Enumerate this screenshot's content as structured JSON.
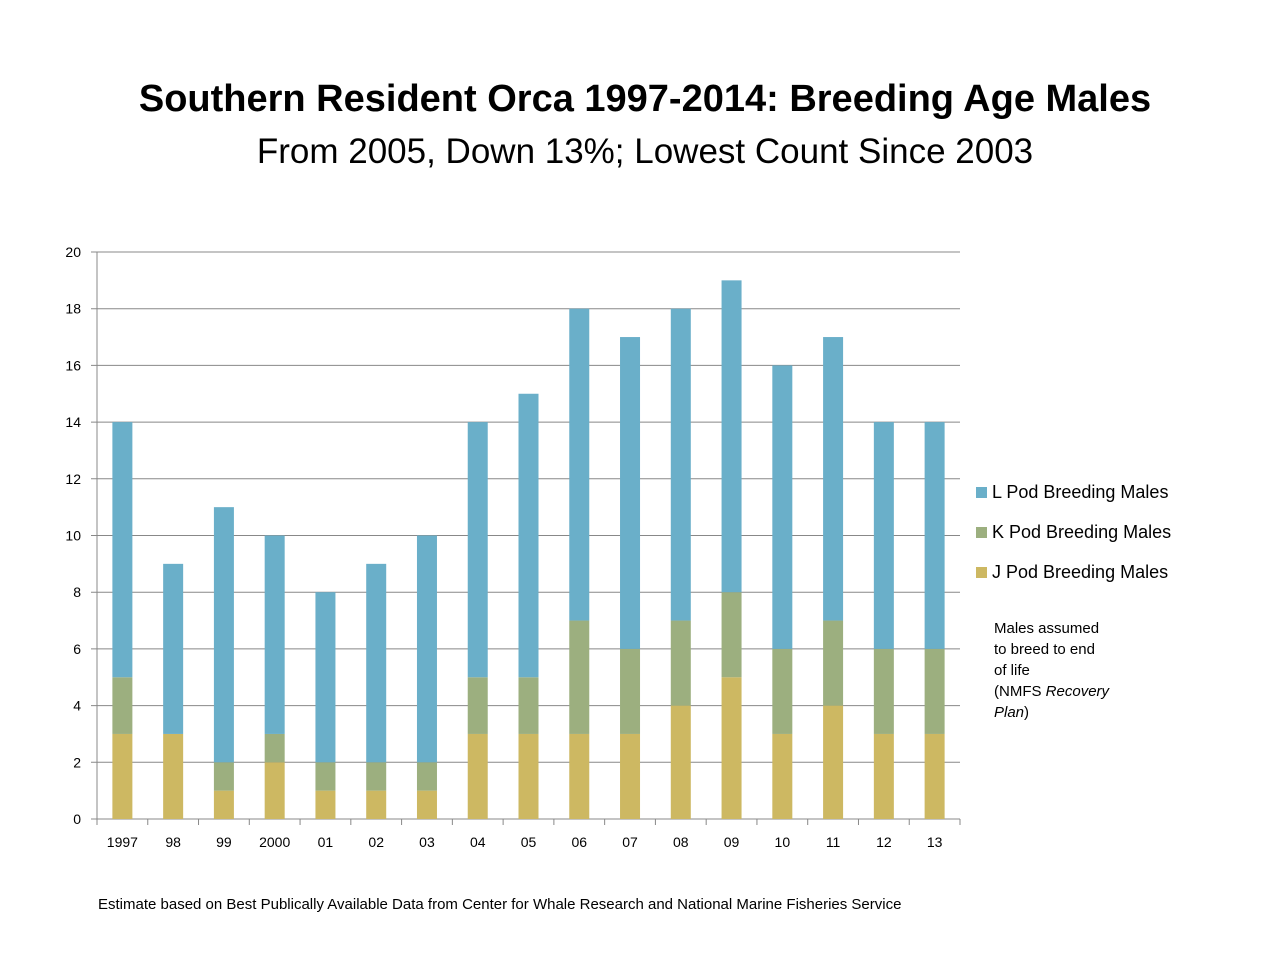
{
  "page": {
    "title": "Southern Resident Orca 1997-2014: Breeding Age Males",
    "subtitle": "From 2005, Down 13%; Lowest Count Since 2003",
    "note": {
      "line1": "Males assumed",
      "line2": "to breed to end",
      "line3": "of life",
      "line4_prefix": "(NMFS ",
      "line4_italic": "Recovery",
      "line5_italic": "Plan",
      "line5_suffix": ")"
    },
    "footnote": "Estimate based on Best Publically Available Data from Center for Whale Research and National Marine Fisheries Service"
  },
  "colors": {
    "j_pod": "#CDB862",
    "k_pod": "#9CAF7F",
    "l_pod": "#6AAFC9",
    "grid": "#888888",
    "axis": "#888888"
  },
  "chart_data": {
    "type": "bar",
    "stacked": true,
    "categories": [
      "1997",
      "98",
      "99",
      "2000",
      "01",
      "02",
      "03",
      "04",
      "05",
      "06",
      "07",
      "08",
      "09",
      "10",
      "11",
      "12",
      "13"
    ],
    "series": [
      {
        "name": "J Pod Breeding Males",
        "color": "#CDB862",
        "values": [
          3,
          3,
          1,
          2,
          1,
          1,
          1,
          3,
          3,
          3,
          3,
          4,
          5,
          3,
          4,
          3,
          3
        ]
      },
      {
        "name": "K Pod Breeding Males",
        "color": "#9CAF7F",
        "values": [
          2,
          0,
          1,
          1,
          1,
          1,
          1,
          2,
          2,
          4,
          3,
          3,
          3,
          3,
          3,
          3,
          3
        ]
      },
      {
        "name": "L Pod Breeding Males",
        "color": "#6AAFC9",
        "values": [
          9,
          6,
          9,
          7,
          6,
          7,
          8,
          9,
          10,
          11,
          11,
          11,
          11,
          10,
          10,
          8,
          8
        ]
      }
    ],
    "legend_order": [
      "L Pod Breeding Males",
      "K Pod Breeding Males",
      "J Pod Breeding Males"
    ],
    "yticks": [
      "0",
      "2",
      "4",
      "6",
      "8",
      "10",
      "12",
      "14",
      "16",
      "18",
      "20"
    ],
    "ylim": [
      0,
      20
    ],
    "grid": true,
    "legend_position": "right"
  }
}
